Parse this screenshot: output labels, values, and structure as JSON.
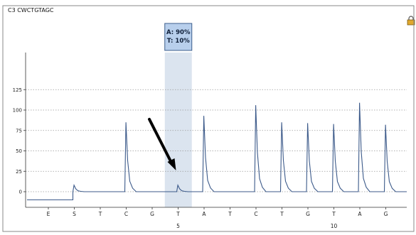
{
  "sample_label": "C3 CWCTGTAGC",
  "icons": {
    "corner": "lock-icon"
  },
  "colors": {
    "trace": "#3c5a8a",
    "highlight_band": "#dbe4ef",
    "callout_bg": "#b8cfec",
    "callout_border": "#3b5e8c",
    "grid": "#9a9a9a",
    "arrow": "#000000"
  },
  "chart_data": {
    "type": "line",
    "title": "",
    "xlabel": "",
    "ylabel": "",
    "ylim": [
      -30,
      135
    ],
    "yticks": [
      0,
      25,
      50,
      75,
      100,
      125
    ],
    "grid": "horizontal-dotted",
    "dispensation_order": [
      "E",
      "S",
      "T",
      "C",
      "G",
      "T",
      "A",
      "T",
      "C",
      "T",
      "G",
      "T",
      "A",
      "G"
    ],
    "position_numbers": [
      {
        "position": 6,
        "label": "5"
      },
      {
        "position": 12,
        "label": "10"
      }
    ],
    "baseline_before_substrate": -10,
    "peaks": [
      0,
      8,
      0,
      85,
      0,
      8,
      93,
      0,
      106,
      85,
      84,
      83,
      109,
      82
    ],
    "highlighted_position": 6,
    "callout": [
      "A: 90%",
      "T: 10%"
    ],
    "arrow_target_position": 6
  }
}
